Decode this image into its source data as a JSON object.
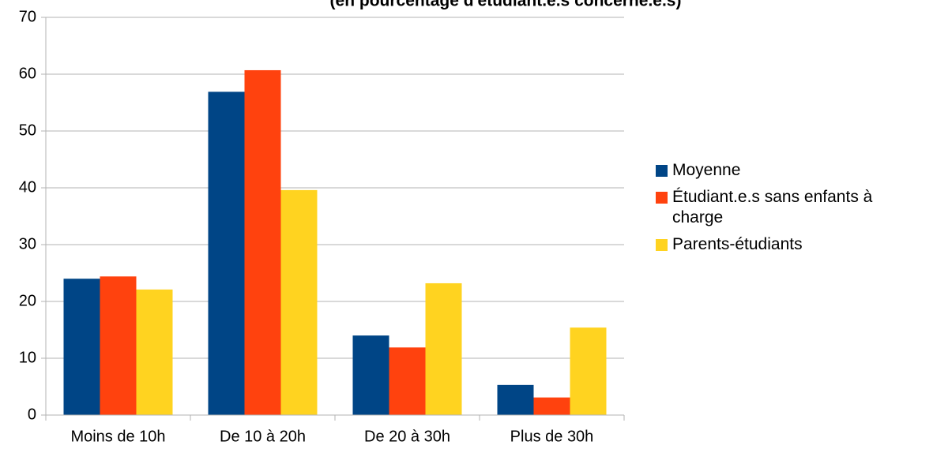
{
  "chart_data": {
    "type": "bar",
    "subtitle": "(en pourcentage d'étudiant.e.s concerné.e.s)",
    "categories": [
      "Moins de 10h",
      "De 10 à 20h",
      "De 20 à 30h",
      "Plus de 30h"
    ],
    "series": [
      {
        "name": "Moyenne",
        "color": "#004586",
        "values": [
          24.0,
          56.9,
          14.0,
          5.3
        ]
      },
      {
        "name": "Étudiant.e.s sans enfants à charge",
        "color": "#ff420e",
        "values": [
          24.4,
          60.7,
          11.9,
          3.1
        ]
      },
      {
        "name": "Parents-étudiants",
        "color": "#ffd320",
        "values": [
          22.1,
          39.6,
          23.2,
          15.4
        ]
      }
    ],
    "ylim": [
      0,
      70
    ],
    "yticks": [
      0,
      10,
      20,
      30,
      40,
      50,
      60,
      70
    ],
    "grid": true,
    "legend": "right"
  }
}
